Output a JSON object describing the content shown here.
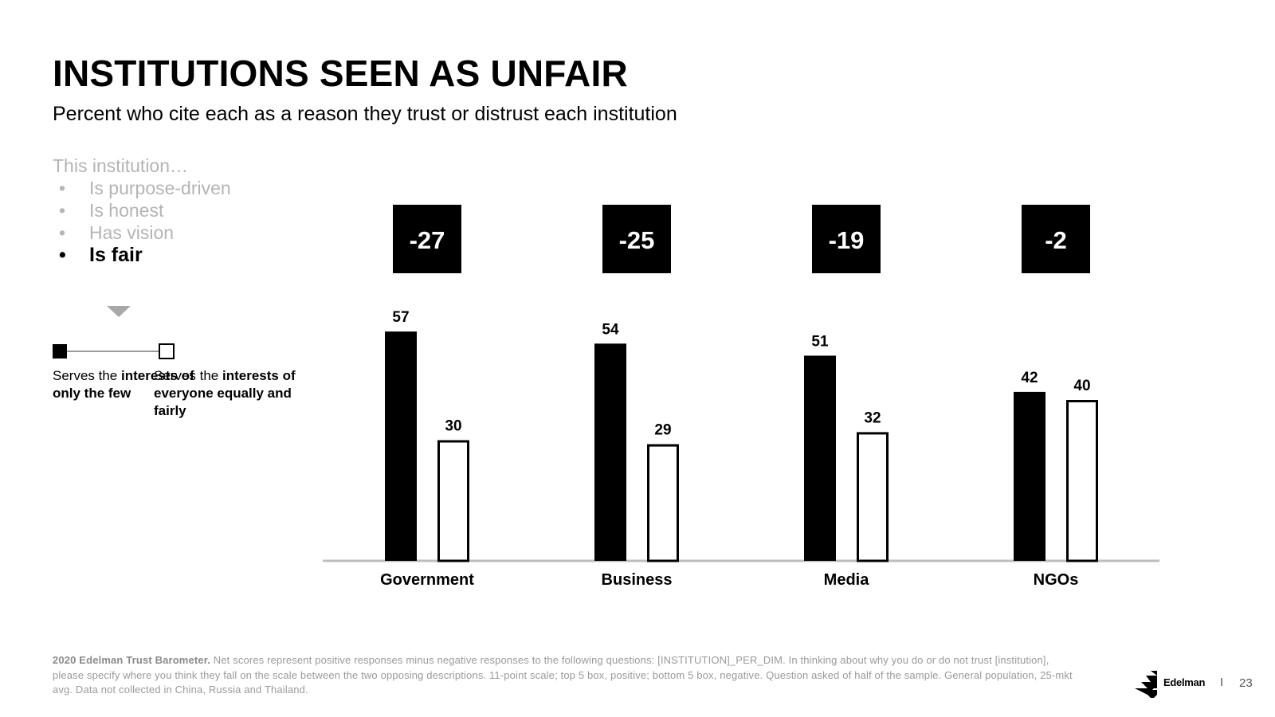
{
  "slide": {
    "title": "INSTITUTIONS SEEN AS UNFAIR",
    "subtitle": "Percent who cite each as a reason they trust or distrust each institution"
  },
  "dimensions": {
    "intro": "This institution…",
    "items": [
      {
        "label": "Is purpose-driven",
        "active": false
      },
      {
        "label": "Is honest",
        "active": false
      },
      {
        "label": "Has vision",
        "active": false
      },
      {
        "label": "Is fair",
        "active": true
      }
    ]
  },
  "legend": {
    "left": {
      "plain": "Serves the ",
      "strong": "interests of only the few"
    },
    "right": {
      "plain": "Serves the ",
      "strong": "interests of everyone equally and fairly"
    }
  },
  "chart_data": {
    "type": "bar",
    "title": "",
    "xlabel": "",
    "ylabel": "",
    "categories": [
      "Government",
      "Business",
      "Media",
      "NGOs"
    ],
    "series": [
      {
        "name": "Serves the interests of only the few",
        "values": [
          57,
          54,
          51,
          42
        ],
        "style": "filled",
        "color": "#000000"
      },
      {
        "name": "Serves the interests of everyone equally and fairly",
        "values": [
          30,
          29,
          32,
          40
        ],
        "style": "outline",
        "color": "#000000"
      }
    ],
    "net_scores": [
      "-27",
      "-25",
      "-19",
      "-2"
    ],
    "ylim": [
      0,
      60
    ],
    "grid": false,
    "data_labels": true,
    "axis_color": "#bdbdbd"
  },
  "footnote": {
    "source": "2020 Edelman Trust Barometer.",
    "text": " Net scores represent positive responses minus negative responses to the following questions: [INSTITUTION]_PER_DIM. In thinking about why you do or do not trust [institution], please specify where you think they fall on the scale between the two opposing descriptions. 11-point scale; top 5 box, positive; bottom 5 box, negative. Question asked of half of the sample. General population, 25-mkt avg. Data not collected in China, Russia and Thailand."
  },
  "branding": {
    "brand": "Edelman",
    "separator": "I",
    "page_number": "23",
    "logo_icon": "edelman-logo-icon"
  }
}
